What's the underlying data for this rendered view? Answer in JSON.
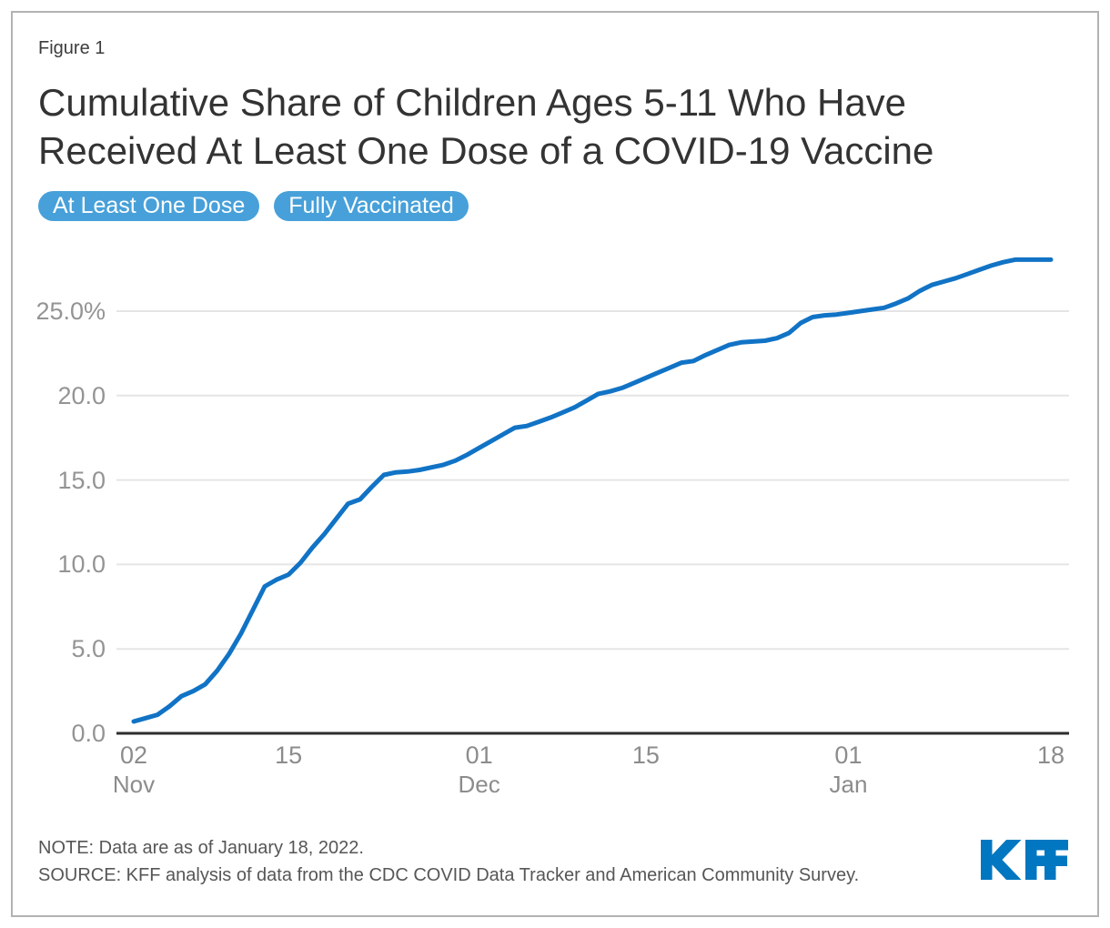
{
  "header": {
    "figure_label": "Figure 1",
    "title_line1": "Cumulative Share of Children Ages 5-11 Who Have",
    "title_line2": "Received At Least One Dose of a COVID-19 Vaccine"
  },
  "tabs": [
    {
      "label": "At Least One Dose",
      "active": true
    },
    {
      "label": "Fully Vaccinated",
      "active": false
    }
  ],
  "footer": {
    "note": "NOTE: Data are as of January 18, 2022.",
    "source": "SOURCE: KFF analysis of data from the CDC COVID Data Tracker and American Community Survey.",
    "logo_text": "KFF"
  },
  "colors": {
    "line": "#1173c5",
    "button_blue": "#47a0d9",
    "kff_blue": "#0077c0",
    "grid": "#e5e5e5",
    "axis": "#2e2e2e",
    "y_tick_text": "#949494",
    "x_tick_text": "#8c8c8c",
    "title_text": "#333333",
    "note_text": "#565656",
    "border": "#b3b3b3"
  },
  "chart_data": {
    "type": "line",
    "series_name": "At Least One Dose",
    "unit": "%",
    "ylim": [
      0,
      25
    ],
    "grid": "horizontal",
    "legend_position": "none",
    "y_ticks": [
      {
        "value": 0,
        "label": "0.0"
      },
      {
        "value": 5,
        "label": "5.0"
      },
      {
        "value": 10,
        "label": "10.0"
      },
      {
        "value": 15,
        "label": "15.0"
      },
      {
        "value": 20,
        "label": "20.0"
      },
      {
        "value": 25,
        "label": "25.0%"
      }
    ],
    "x_ticks": [
      {
        "date": "2021-11-02",
        "day": "02",
        "month": "Nov"
      },
      {
        "date": "2021-11-15",
        "day": "15",
        "month": ""
      },
      {
        "date": "2021-12-01",
        "day": "01",
        "month": "Dec"
      },
      {
        "date": "2021-12-15",
        "day": "15",
        "month": ""
      },
      {
        "date": "2022-01-01",
        "day": "01",
        "month": "Jan"
      },
      {
        "date": "2022-01-18",
        "day": "18",
        "month": ""
      }
    ],
    "points": [
      {
        "date": "2021-11-02",
        "value": 0.7
      },
      {
        "date": "2021-11-03",
        "value": 0.9
      },
      {
        "date": "2021-11-04",
        "value": 1.1
      },
      {
        "date": "2021-11-05",
        "value": 1.6
      },
      {
        "date": "2021-11-06",
        "value": 2.2
      },
      {
        "date": "2021-11-07",
        "value": 2.5
      },
      {
        "date": "2021-11-08",
        "value": 2.9
      },
      {
        "date": "2021-11-09",
        "value": 3.7
      },
      {
        "date": "2021-11-10",
        "value": 4.7
      },
      {
        "date": "2021-11-11",
        "value": 5.9
      },
      {
        "date": "2021-11-12",
        "value": 7.3
      },
      {
        "date": "2021-11-13",
        "value": 8.7
      },
      {
        "date": "2021-11-14",
        "value": 9.1
      },
      {
        "date": "2021-11-15",
        "value": 9.4
      },
      {
        "date": "2021-11-16",
        "value": 10.1
      },
      {
        "date": "2021-11-17",
        "value": 11.0
      },
      {
        "date": "2021-11-18",
        "value": 11.8
      },
      {
        "date": "2021-11-19",
        "value": 12.7
      },
      {
        "date": "2021-11-20",
        "value": 13.6
      },
      {
        "date": "2021-11-21",
        "value": 13.85
      },
      {
        "date": "2021-11-22",
        "value": 14.6
      },
      {
        "date": "2021-11-23",
        "value": 15.3
      },
      {
        "date": "2021-11-24",
        "value": 15.45
      },
      {
        "date": "2021-11-25",
        "value": 15.5
      },
      {
        "date": "2021-11-26",
        "value": 15.6
      },
      {
        "date": "2021-11-27",
        "value": 15.75
      },
      {
        "date": "2021-11-28",
        "value": 15.9
      },
      {
        "date": "2021-11-29",
        "value": 16.15
      },
      {
        "date": "2021-11-30",
        "value": 16.5
      },
      {
        "date": "2021-12-01",
        "value": 16.9
      },
      {
        "date": "2021-12-02",
        "value": 17.3
      },
      {
        "date": "2021-12-03",
        "value": 17.7
      },
      {
        "date": "2021-12-04",
        "value": 18.1
      },
      {
        "date": "2021-12-05",
        "value": 18.2
      },
      {
        "date": "2021-12-06",
        "value": 18.45
      },
      {
        "date": "2021-12-07",
        "value": 18.7
      },
      {
        "date": "2021-12-08",
        "value": 19.0
      },
      {
        "date": "2021-12-09",
        "value": 19.3
      },
      {
        "date": "2021-12-10",
        "value": 19.7
      },
      {
        "date": "2021-12-11",
        "value": 20.1
      },
      {
        "date": "2021-12-12",
        "value": 20.25
      },
      {
        "date": "2021-12-13",
        "value": 20.45
      },
      {
        "date": "2021-12-14",
        "value": 20.75
      },
      {
        "date": "2021-12-15",
        "value": 21.05
      },
      {
        "date": "2021-12-16",
        "value": 21.35
      },
      {
        "date": "2021-12-17",
        "value": 21.65
      },
      {
        "date": "2021-12-18",
        "value": 21.95
      },
      {
        "date": "2021-12-19",
        "value": 22.05
      },
      {
        "date": "2021-12-20",
        "value": 22.4
      },
      {
        "date": "2021-12-21",
        "value": 22.7
      },
      {
        "date": "2021-12-22",
        "value": 23.0
      },
      {
        "date": "2021-12-23",
        "value": 23.15
      },
      {
        "date": "2021-12-24",
        "value": 23.2
      },
      {
        "date": "2021-12-25",
        "value": 23.25
      },
      {
        "date": "2021-12-26",
        "value": 23.4
      },
      {
        "date": "2021-12-27",
        "value": 23.7
      },
      {
        "date": "2021-12-28",
        "value": 24.3
      },
      {
        "date": "2021-12-29",
        "value": 24.65
      },
      {
        "date": "2021-12-30",
        "value": 24.75
      },
      {
        "date": "2021-12-31",
        "value": 24.8
      },
      {
        "date": "2022-01-01",
        "value": 24.9
      },
      {
        "date": "2022-01-02",
        "value": 25.0
      },
      {
        "date": "2022-01-03",
        "value": 25.1
      },
      {
        "date": "2022-01-04",
        "value": 25.2
      },
      {
        "date": "2022-01-05",
        "value": 25.45
      },
      {
        "date": "2022-01-06",
        "value": 25.75
      },
      {
        "date": "2022-01-07",
        "value": 26.2
      },
      {
        "date": "2022-01-08",
        "value": 26.55
      },
      {
        "date": "2022-01-09",
        "value": 26.75
      },
      {
        "date": "2022-01-10",
        "value": 26.95
      },
      {
        "date": "2022-01-11",
        "value": 27.2
      },
      {
        "date": "2022-01-12",
        "value": 27.45
      },
      {
        "date": "2022-01-13",
        "value": 27.7
      },
      {
        "date": "2022-01-14",
        "value": 27.9
      },
      {
        "date": "2022-01-15",
        "value": 28.05
      },
      {
        "date": "2022-01-16",
        "value": 28.05
      },
      {
        "date": "2022-01-17",
        "value": 28.05
      },
      {
        "date": "2022-01-18",
        "value": 28.05
      }
    ]
  }
}
